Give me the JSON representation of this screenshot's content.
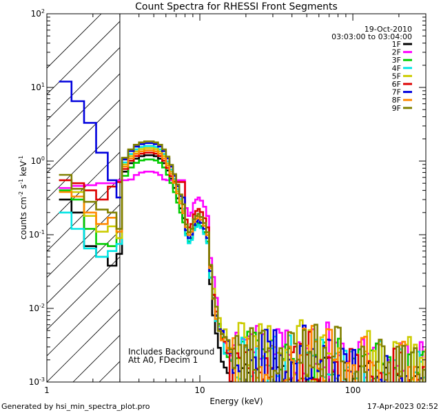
{
  "chart_data": {
    "type": "line",
    "title": "Count Spectra for RHESSI Front Segments",
    "xlabel": "Energy (keV)",
    "ylabel_parts": {
      "main": "counts cm",
      "cm_exp": "-2",
      "s": " s",
      "s_exp": "-1",
      "kev": " keV",
      "kev_exp": "-1"
    },
    "x_scale": "log",
    "y_scale": "log",
    "xlim": [
      1,
      300
    ],
    "ylim": [
      0.001,
      100
    ],
    "x_ticks": [
      {
        "value": 1,
        "label": "1"
      },
      {
        "value": 10,
        "label": "10"
      },
      {
        "value": 100,
        "label": "100"
      }
    ],
    "y_ticks": [
      {
        "value": 0.001,
        "base": "10",
        "exp": "-3"
      },
      {
        "value": 0.01,
        "base": "10",
        "exp": "-2"
      },
      {
        "value": 0.1,
        "base": "10",
        "exp": "-1"
      },
      {
        "value": 1,
        "base": "10",
        "exp": "0"
      },
      {
        "value": 10,
        "base": "10",
        "exp": "1"
      },
      {
        "value": 100,
        "base": "10",
        "exp": "2"
      }
    ],
    "hatched_region": {
      "x_from": 1,
      "x_to": 3
    },
    "legend_header": {
      "date": "19-Oct-2010",
      "time_range": "03:03:00 to 03:04:00"
    },
    "annotations": [
      "Includes Background",
      "Att A0, FDecim 1"
    ],
    "series": [
      {
        "name": "1F",
        "color": "#000000",
        "low": [
          0.3,
          0.2,
          0.07,
          0.05,
          0.038,
          0.055
        ],
        "peak": 1.2,
        "dip": 0.09,
        "tail": 0.001
      },
      {
        "name": "2F",
        "color": "#ff00ff",
        "low": [
          0.43,
          0.46,
          0.47,
          0.5,
          0.5,
          0.55
        ],
        "peak": 0.72,
        "dip": 0.2,
        "tail": 0.0022
      },
      {
        "name": "3F",
        "color": "#00cc00",
        "low": [
          0.4,
          0.3,
          0.12,
          0.075,
          0.07,
          0.09
        ],
        "peak": 1.05,
        "dip": 0.09,
        "tail": 0.0018
      },
      {
        "name": "4F",
        "color": "#00e5e5",
        "low": [
          0.2,
          0.12,
          0.065,
          0.05,
          0.06,
          0.075
        ],
        "peak": 1.6,
        "dip": 0.085,
        "tail": 0.0018
      },
      {
        "name": "5F",
        "color": "#cccc00",
        "low": [
          0.55,
          0.38,
          0.18,
          0.11,
          0.13,
          0.09
        ],
        "peak": 1.5,
        "dip": 0.12,
        "tail": 0.0025
      },
      {
        "name": "6F",
        "color": "#dd0000",
        "low": [
          0.55,
          0.5,
          0.4,
          0.3,
          0.45,
          0.52
        ],
        "peak": 1.3,
        "dip": 0.14,
        "tail": 0.0016
      },
      {
        "name": "7F",
        "color": "#0000dd",
        "low": [
          12,
          6.5,
          3.3,
          1.3,
          0.55,
          0.32
        ],
        "peak": 1.75,
        "dip": 0.1,
        "tail": 0.002
      },
      {
        "name": "8F",
        "color": "#ff8800",
        "low": [
          0.38,
          0.33,
          0.2,
          0.14,
          0.17,
          0.11
        ],
        "peak": 1.4,
        "dip": 0.11,
        "tail": 0.002
      },
      {
        "name": "9F",
        "color": "#808000",
        "low": [
          0.65,
          0.42,
          0.28,
          0.22,
          0.2,
          0.12
        ],
        "peak": 1.85,
        "dip": 0.12,
        "tail": 0.0021
      }
    ],
    "low_energy_edges": [
      1.2,
      1.45,
      1.75,
      2.1,
      2.5,
      2.85,
      3.1
    ]
  },
  "footer": {
    "left": "Generated by hsi_min_spectra_plot.pro",
    "right": "17-Apr-2023 02:52"
  }
}
